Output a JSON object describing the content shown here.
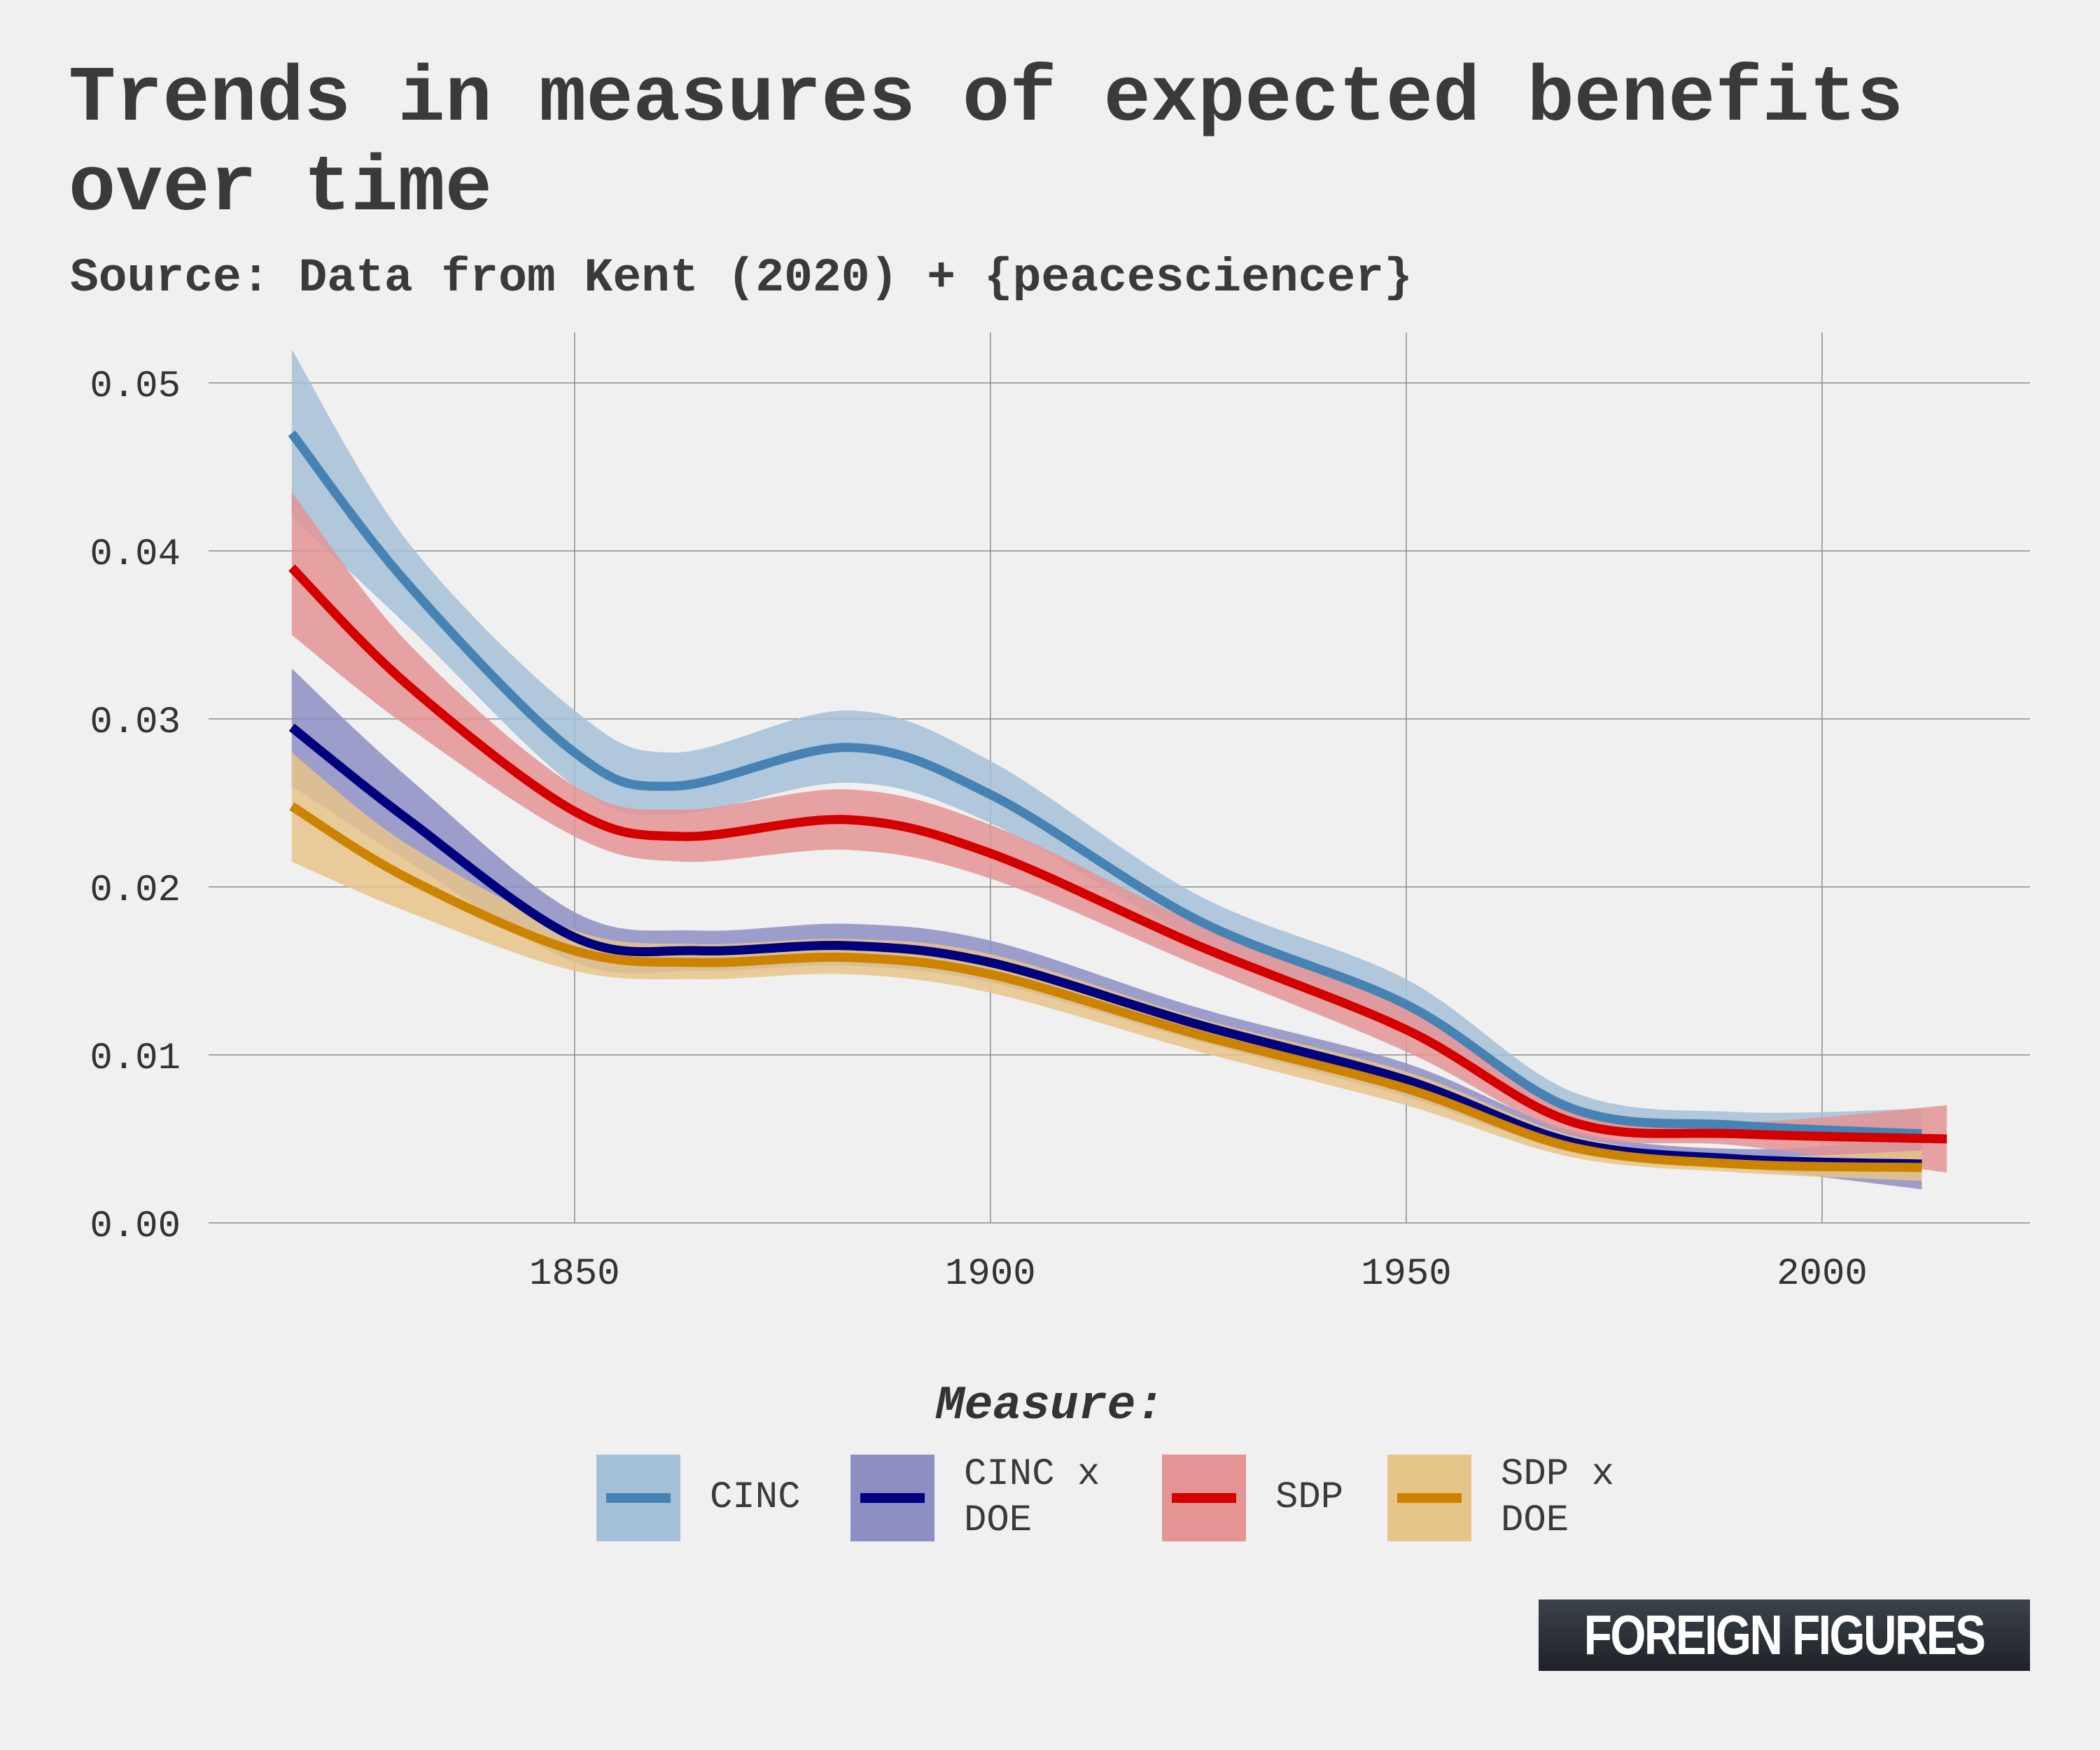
{
  "title": "Trends in measures of expected benefits over time",
  "subtitle": "Source: Data from Kent (2020) + {peacesciencer}",
  "brand": "FOREIGN FIGURES",
  "chart_data": {
    "type": "line",
    "title": "Trends in measures of expected benefits over time",
    "subtitle": "Source: Data from Kent (2020) + {peacesciencer}",
    "xlabel": "",
    "ylabel": "",
    "xlim": [
      1806,
      2025
    ],
    "ylim": [
      0,
      0.053
    ],
    "x_ticks": [
      1850,
      1900,
      1950,
      2000
    ],
    "y_ticks": [
      0.0,
      0.01,
      0.02,
      0.03,
      0.04,
      0.05
    ],
    "y_tick_labels": [
      "0.00",
      "0.01",
      "0.02",
      "0.03",
      "0.04",
      "0.05"
    ],
    "grid": true,
    "legend_title": "Measure:",
    "legend_position": "bottom",
    "series": [
      {
        "name": "CINC",
        "color": "#4682b4",
        "band_color": "#a4bfd8",
        "x": [
          1816,
          1830,
          1850,
          1862,
          1883,
          1900,
          1925,
          1950,
          1970,
          1990,
          2012
        ],
        "y": [
          0.047,
          0.038,
          0.028,
          0.026,
          0.0283,
          0.0255,
          0.018,
          0.013,
          0.0068,
          0.0058,
          0.0053
        ],
        "lower": [
          0.042,
          0.0355,
          0.026,
          0.0243,
          0.0262,
          0.0238,
          0.0168,
          0.0115,
          0.006,
          0.0052,
          0.0042
        ],
        "upper": [
          0.052,
          0.0405,
          0.0305,
          0.028,
          0.0305,
          0.0275,
          0.0195,
          0.0145,
          0.0078,
          0.0066,
          0.0068
        ]
      },
      {
        "name": "CINC x DOE",
        "color": "#00007f",
        "band_color": "#8e8ec4",
        "x": [
          1816,
          1830,
          1850,
          1865,
          1883,
          1900,
          1925,
          1950,
          1970,
          1990,
          2012
        ],
        "y": [
          0.0295,
          0.024,
          0.017,
          0.0162,
          0.0165,
          0.0155,
          0.0118,
          0.0085,
          0.0048,
          0.0038,
          0.0035
        ],
        "lower": [
          0.026,
          0.0215,
          0.0155,
          0.015,
          0.0153,
          0.0143,
          0.0108,
          0.0075,
          0.0042,
          0.0033,
          0.002
        ],
        "upper": [
          0.033,
          0.0265,
          0.0185,
          0.0174,
          0.0178,
          0.0168,
          0.0128,
          0.0095,
          0.0055,
          0.0044,
          0.005
        ]
      },
      {
        "name": "SDP",
        "color": "#d40000",
        "band_color": "#e49494",
        "x": [
          1816,
          1830,
          1850,
          1863,
          1883,
          1900,
          1925,
          1950,
          1970,
          1990,
          2015
        ],
        "y": [
          0.039,
          0.032,
          0.0245,
          0.023,
          0.024,
          0.022,
          0.0165,
          0.0115,
          0.006,
          0.0053,
          0.005
        ],
        "lower": [
          0.035,
          0.0295,
          0.023,
          0.0215,
          0.0222,
          0.0205,
          0.0153,
          0.0102,
          0.0053,
          0.0046,
          0.003
        ],
        "upper": [
          0.0435,
          0.0345,
          0.026,
          0.0246,
          0.0258,
          0.0237,
          0.0178,
          0.0128,
          0.0068,
          0.006,
          0.007
        ]
      },
      {
        "name": "SDP x DOE",
        "color": "#cc8400",
        "band_color": "#e6c48a",
        "x": [
          1816,
          1830,
          1850,
          1865,
          1883,
          1900,
          1925,
          1950,
          1970,
          1990,
          2012
        ],
        "y": [
          0.0248,
          0.0205,
          0.0162,
          0.0155,
          0.0158,
          0.0148,
          0.0112,
          0.008,
          0.0045,
          0.0035,
          0.0033
        ],
        "lower": [
          0.0215,
          0.0185,
          0.015,
          0.0145,
          0.0148,
          0.0137,
          0.0102,
          0.007,
          0.0039,
          0.003,
          0.0025
        ],
        "upper": [
          0.028,
          0.0225,
          0.0174,
          0.0166,
          0.0169,
          0.016,
          0.0122,
          0.009,
          0.0052,
          0.004,
          0.0043
        ]
      }
    ]
  },
  "legend": {
    "title": "Measure:",
    "items": [
      {
        "label": "CINC",
        "line_color": "#4682b4",
        "fill_color": "#a4bfd8"
      },
      {
        "label": "CINC x\nDOE",
        "line_color": "#00007f",
        "fill_color": "#8e8ec4"
      },
      {
        "label": "SDP",
        "line_color": "#d40000",
        "fill_color": "#e49494"
      },
      {
        "label": "SDP x\nDOE",
        "line_color": "#cc8400",
        "fill_color": "#e6c48a"
      }
    ]
  }
}
